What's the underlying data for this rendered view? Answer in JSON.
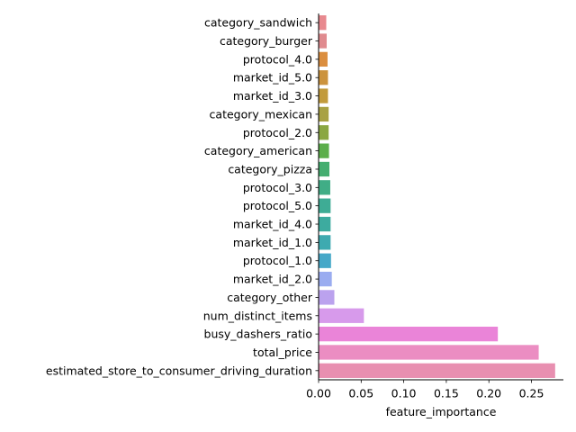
{
  "chart_data": {
    "type": "bar",
    "orientation": "horizontal",
    "categories": [
      "category_sandwich",
      "category_burger",
      "protocol_4.0",
      "market_id_5.0",
      "market_id_3.0",
      "category_mexican",
      "protocol_2.0",
      "category_american",
      "category_pizza",
      "protocol_3.0",
      "protocol_5.0",
      "market_id_4.0",
      "market_id_1.0",
      "protocol_1.0",
      "market_id_2.0",
      "category_other",
      "num_distinct_items",
      "busy_dashers_ratio",
      "total_price",
      "estimated_store_to_consumer_driving_duration"
    ],
    "values": [
      0.009,
      0.0095,
      0.0105,
      0.011,
      0.011,
      0.0118,
      0.0118,
      0.0122,
      0.0127,
      0.0137,
      0.0141,
      0.0141,
      0.0141,
      0.0146,
      0.0155,
      0.0185,
      0.0532,
      0.2105,
      0.2585,
      0.2778
    ],
    "colors": [
      "#e8898f",
      "#e08b8f",
      "#db8e3f",
      "#cc933d",
      "#c29b3c",
      "#a8a143",
      "#8aa742",
      "#5cae4a",
      "#45ae70",
      "#40ad86",
      "#3eac95",
      "#3dab9f",
      "#3eaab0",
      "#45a8c8",
      "#9aacf0",
      "#bba2ee",
      "#d79aeb",
      "#ea84d8",
      "#eb8dc2",
      "#e88fb0"
    ],
    "xlabel": "feature_importance",
    "ylabel": "",
    "title": "",
    "xlim": [
      0,
      0.2875
    ],
    "xticks": [
      0.0,
      0.05,
      0.1,
      0.15,
      0.2,
      0.25
    ],
    "xtick_labels": [
      "0.00",
      "0.05",
      "0.10",
      "0.15",
      "0.20",
      "0.25"
    ],
    "grid": false,
    "legend": "none"
  }
}
